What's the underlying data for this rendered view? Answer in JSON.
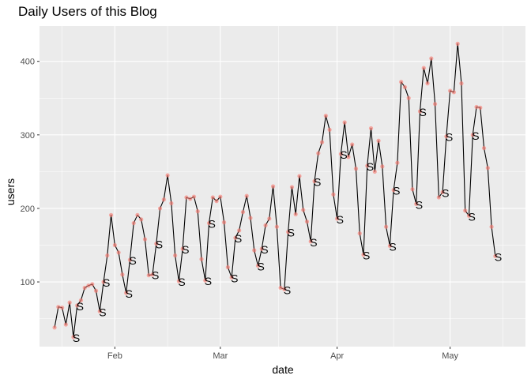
{
  "chart_data": {
    "type": "line",
    "title": "Daily Users of this Blog",
    "xlabel": "date",
    "ylabel": "users",
    "x_tick_labels": [
      {
        "date": "2017-02-01",
        "label": "Feb"
      },
      {
        "date": "2017-03-01",
        "label": "Mar"
      },
      {
        "date": "2017-04-01",
        "label": "Apr"
      },
      {
        "date": "2017-05-01",
        "label": "May"
      }
    ],
    "y_ticks": [
      100,
      200,
      300,
      400
    ],
    "x_range": [
      "2017-01-12",
      "2017-05-21"
    ],
    "ylim": [
      12,
      448
    ],
    "grid": true,
    "line_color": "#000000",
    "point_color": "#F8766D",
    "panel_color": "#EBEBEB",
    "weekend_marker": "S",
    "series": [
      {
        "start_date": "2017-01-16",
        "values": [
          38,
          66,
          65,
          42,
          72,
          25,
          68,
          75,
          92,
          95,
          97,
          88,
          60,
          100,
          136,
          191,
          150,
          140,
          110,
          85,
          130,
          180,
          191,
          185,
          158,
          109,
          110,
          152,
          200,
          212,
          245,
          207,
          136,
          101,
          145,
          215,
          213,
          216,
          196,
          131,
          102,
          180,
          215,
          210,
          216,
          181,
          120,
          106,
          160,
          170,
          195,
          217,
          187,
          143,
          122,
          145,
          177,
          186,
          230,
          175,
          92,
          90,
          168,
          229,
          192,
          244,
          198,
          182,
          155,
          237,
          275,
          290,
          326,
          307,
          219,
          186,
          274,
          317,
          270,
          287,
          254,
          166,
          137,
          258,
          309,
          250,
          292,
          257,
          175,
          149,
          225,
          262,
          372,
          365,
          350,
          226,
          206,
          332,
          391,
          370,
          404,
          342,
          215,
          222,
          298,
          360,
          358,
          424,
          370,
          197,
          190,
          300,
          338,
          337,
          282,
          255,
          175,
          135
        ]
      }
    ],
    "annotations": [
      {
        "date": "2017-01-21",
        "label": "S"
      },
      {
        "date": "2017-01-22",
        "label": "S"
      },
      {
        "date": "2017-01-28",
        "label": "S"
      },
      {
        "date": "2017-01-29",
        "label": "S"
      },
      {
        "date": "2017-02-04",
        "label": "S"
      },
      {
        "date": "2017-02-05",
        "label": "S"
      },
      {
        "date": "2017-02-11",
        "label": "S"
      },
      {
        "date": "2017-02-12",
        "label": "S"
      },
      {
        "date": "2017-02-18",
        "label": "S"
      },
      {
        "date": "2017-02-19",
        "label": "S"
      },
      {
        "date": "2017-02-25",
        "label": "S"
      },
      {
        "date": "2017-02-26",
        "label": "S"
      },
      {
        "date": "2017-03-04",
        "label": "S"
      },
      {
        "date": "2017-03-05",
        "label": "S"
      },
      {
        "date": "2017-03-11",
        "label": "S"
      },
      {
        "date": "2017-03-12",
        "label": "S"
      },
      {
        "date": "2017-03-18",
        "label": "S"
      },
      {
        "date": "2017-03-19",
        "label": "S"
      },
      {
        "date": "2017-03-25",
        "label": "S"
      },
      {
        "date": "2017-03-26",
        "label": "S"
      },
      {
        "date": "2017-04-01",
        "label": "S"
      },
      {
        "date": "2017-04-02",
        "label": "S"
      },
      {
        "date": "2017-04-08",
        "label": "S"
      },
      {
        "date": "2017-04-09",
        "label": "S"
      },
      {
        "date": "2017-04-15",
        "label": "S"
      },
      {
        "date": "2017-04-16",
        "label": "S"
      },
      {
        "date": "2017-04-22",
        "label": "S"
      },
      {
        "date": "2017-04-23",
        "label": "S"
      },
      {
        "date": "2017-04-29",
        "label": "S"
      },
      {
        "date": "2017-04-30",
        "label": "S"
      },
      {
        "date": "2017-05-06",
        "label": "S"
      },
      {
        "date": "2017-05-07",
        "label": "S"
      },
      {
        "date": "2017-05-13",
        "label": "S"
      },
      {
        "date": "2017-05-14",
        "label": "S"
      }
    ]
  }
}
